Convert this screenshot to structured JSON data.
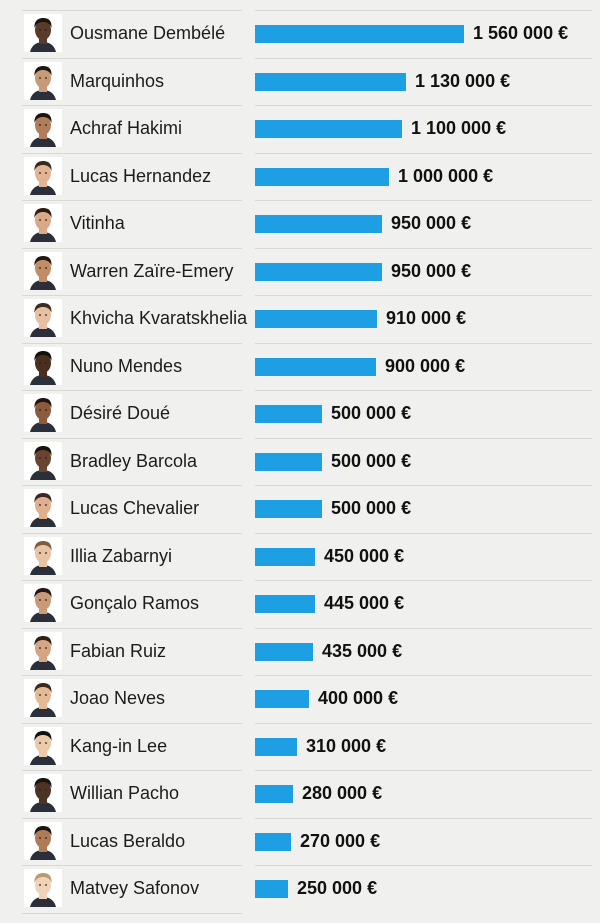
{
  "chart_data": {
    "type": "bar",
    "orientation": "horizontal",
    "categories": [
      "Ousmane Dembélé",
      "Marquinhos",
      "Achraf Hakimi",
      "Lucas Hernandez",
      "Vitinha",
      "Warren Zaïre-Emery",
      "Khvicha Kvaratskhelia",
      "Nuno Mendes",
      "Désiré Doué",
      "Bradley Barcola",
      "Lucas Chevalier",
      "Illia Zabarnyi",
      "Gonçalo Ramos",
      "Fabian Ruiz",
      "Joao Neves",
      "Kang-in Lee",
      "Willian Pacho",
      "Lucas Beraldo",
      "Matvey Safonov"
    ],
    "values": [
      1560000,
      1130000,
      1100000,
      1000000,
      950000,
      950000,
      910000,
      900000,
      500000,
      500000,
      500000,
      450000,
      445000,
      435000,
      400000,
      310000,
      280000,
      270000,
      250000
    ],
    "value_labels": [
      "1 560 000 €",
      "1 130 000 €",
      "1 100 000 €",
      "1 000 000 €",
      "950 000 €",
      "950 000 €",
      "910 000 €",
      "900 000 €",
      "500 000 €",
      "500 000 €",
      "500 000 €",
      "450 000 €",
      "445 000 €",
      "435 000 €",
      "400 000 €",
      "310 000 €",
      "280 000 €",
      "270 000 €",
      "250 000 €"
    ],
    "title": "",
    "xlabel": "",
    "ylabel": "",
    "xlim": [
      0,
      1560000
    ],
    "grid": false,
    "legend": "none"
  },
  "colors": {
    "bar": "#1e9fe3",
    "background": "#f0f0ef",
    "text": "#1c1c1c",
    "divider": "#d8d8d6"
  },
  "icons": {
    "avatar": "player-portrait-icon"
  }
}
